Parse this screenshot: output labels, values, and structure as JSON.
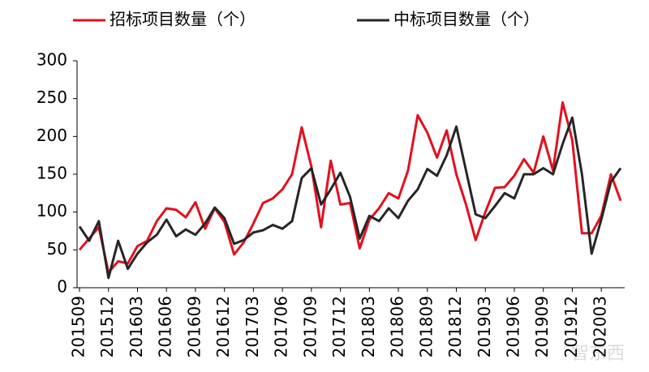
{
  "chart_data": {
    "type": "line",
    "categories": [
      "201509",
      null,
      null,
      "201512",
      null,
      null,
      "201603",
      null,
      null,
      "201606",
      null,
      null,
      "201609",
      null,
      null,
      "201612",
      null,
      null,
      "201703",
      null,
      null,
      "201706",
      null,
      null,
      "201709",
      null,
      null,
      "201712",
      null,
      null,
      "201803",
      null,
      null,
      "201806",
      null,
      null,
      "201809",
      null,
      null,
      "201812",
      null,
      null,
      "201903",
      null,
      null,
      "201906",
      null,
      null,
      "201909",
      null,
      null,
      "201912",
      null,
      null,
      "202003",
      null,
      null
    ],
    "series": [
      {
        "name": "招标项目数量（个）",
        "color": "#e3101e",
        "values": [
          50,
          65,
          80,
          20,
          35,
          32,
          55,
          62,
          88,
          105,
          103,
          93,
          113,
          78,
          105,
          87,
          44,
          60,
          85,
          112,
          118,
          130,
          150,
          212,
          160,
          80,
          168,
          110,
          112,
          52,
          90,
          105,
          125,
          118,
          155,
          228,
          205,
          172,
          208,
          150,
          110,
          63,
          100,
          132,
          133,
          148,
          170,
          152,
          200,
          155,
          245,
          195,
          72,
          72,
          95,
          150,
          115
        ]
      },
      {
        "name": "中标项目数量（个）",
        "color": "#262626",
        "values": [
          81,
          62,
          88,
          13,
          62,
          25,
          45,
          60,
          70,
          90,
          68,
          77,
          70,
          85,
          106,
          92,
          58,
          63,
          73,
          76,
          83,
          78,
          88,
          145,
          158,
          110,
          130,
          152,
          120,
          65,
          95,
          88,
          105,
          92,
          115,
          130,
          157,
          148,
          175,
          213,
          155,
          97,
          92,
          108,
          125,
          118,
          150,
          150,
          158,
          150,
          190,
          225,
          150,
          45,
          90,
          140,
          158
        ]
      }
    ],
    "ylim": [
      0,
      300
    ],
    "yticks": [
      0,
      50,
      100,
      150,
      200,
      250,
      300
    ],
    "watermark": "智东西"
  }
}
